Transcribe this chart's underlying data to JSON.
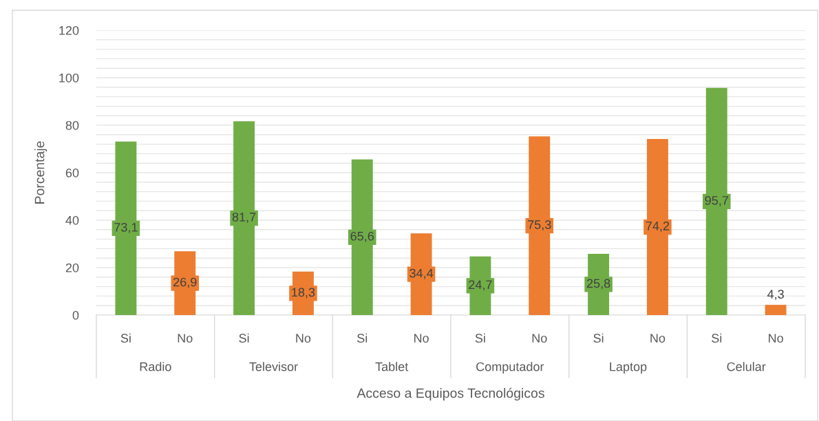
{
  "chart_data": {
    "type": "bar",
    "xlabel": "Acceso a Equipos Tecnológicos",
    "ylabel": "Porcentaje",
    "categories": [
      "Radio",
      "Televisor",
      "Tablet",
      "Computador",
      "Laptop",
      "Celular"
    ],
    "series": [
      {
        "name": "Si",
        "color": "#70ad47",
        "values": [
          73.1,
          81.7,
          65.6,
          24.7,
          25.8,
          95.7
        ],
        "value_labels": [
          "73,1",
          "81,7",
          "65,6",
          "24,7",
          "25,8",
          "95,7"
        ]
      },
      {
        "name": "No",
        "color": "#ed7d31",
        "values": [
          26.9,
          18.3,
          34.4,
          75.3,
          74.2,
          4.3
        ],
        "value_labels": [
          "26,9",
          "18,3",
          "34,4",
          "75,3",
          "74,2",
          "4,3"
        ]
      }
    ],
    "ylim": [
      0,
      120
    ],
    "yticks": [
      0,
      {
        "value": 4,
        "label": null
      },
      {
        "value": 8,
        "label": null
      },
      {
        "value": 12,
        "label": null
      },
      {
        "value": 16,
        "label": null
      },
      20,
      {
        "value": 24,
        "label": null
      },
      {
        "value": 28,
        "label": null
      },
      {
        "value": 32,
        "label": null
      },
      {
        "value": 36,
        "label": null
      },
      40,
      {
        "value": 44,
        "label": null
      },
      {
        "value": 48,
        "label": null
      },
      {
        "value": 52,
        "label": null
      },
      {
        "value": 56,
        "label": null
      },
      60,
      {
        "value": 64,
        "label": null
      },
      {
        "value": 68,
        "label": null
      },
      {
        "value": 72,
        "label": null
      },
      {
        "value": 76,
        "label": null
      },
      80,
      {
        "value": 84,
        "label": null
      },
      {
        "value": 88,
        "label": null
      },
      {
        "value": 92,
        "label": null
      },
      {
        "value": 96,
        "label": null
      },
      100,
      {
        "value": 104,
        "label": null
      },
      {
        "value": 108,
        "label": null
      },
      {
        "value": 112,
        "label": null
      },
      {
        "value": 116,
        "label": null
      },
      120
    ],
    "grid": "y",
    "legend": false
  }
}
